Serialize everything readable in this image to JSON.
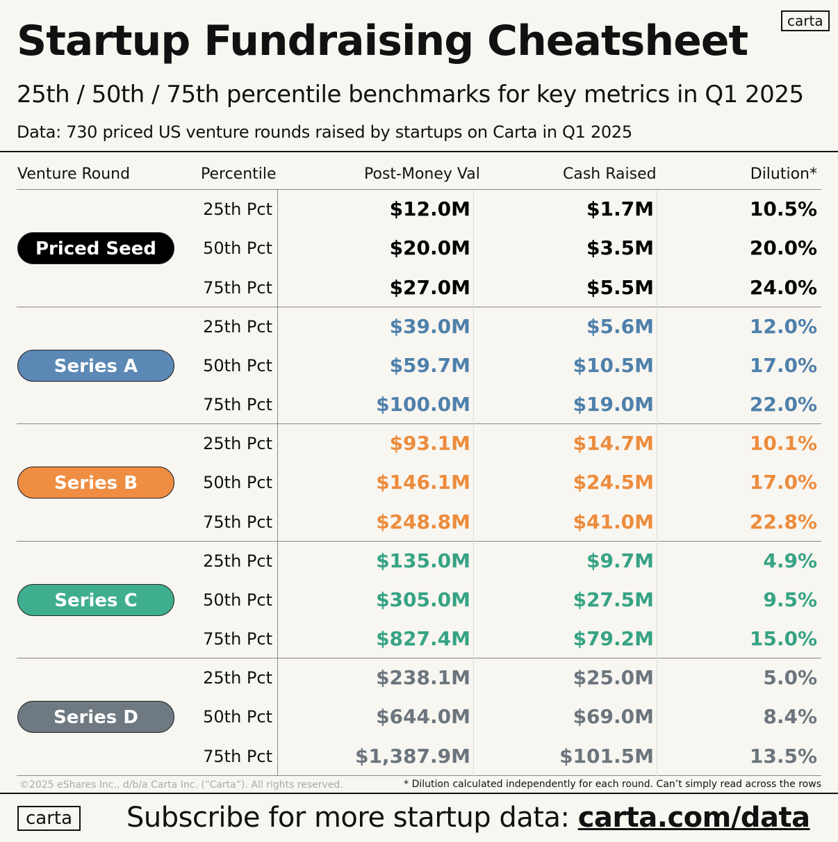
{
  "header": {
    "logo": "carta",
    "title": "Startup Fundraising Cheatsheet",
    "subtitle": "25th / 50th / 75th percentile benchmarks for key metrics in Q1 2025",
    "source": "Data: 730 priced US venture rounds raised by startups on Carta in Q1 2025"
  },
  "table": {
    "columns": [
      "Venture Round",
      "Percentile",
      "Post-Money Val",
      "Cash Raised",
      "Dilution*"
    ],
    "groups": [
      {
        "name": "Priced Seed",
        "rows": [
          [
            "25th Pct",
            "$12.0M",
            "$1.7M",
            "10.5%"
          ],
          [
            "50th Pct",
            "$20.0M",
            "$3.5M",
            "20.0%"
          ],
          [
            "75th Pct",
            "$27.0M",
            "$5.5M",
            "24.0%"
          ]
        ]
      },
      {
        "name": "Series A",
        "rows": [
          [
            "25th Pct",
            "$39.0M",
            "$5.6M",
            "12.0%"
          ],
          [
            "50th Pct",
            "$59.7M",
            "$10.5M",
            "17.0%"
          ],
          [
            "75th Pct",
            "$100.0M",
            "$19.0M",
            "22.0%"
          ]
        ]
      },
      {
        "name": "Series B",
        "rows": [
          [
            "25th Pct",
            "$93.1M",
            "$14.7M",
            "10.1%"
          ],
          [
            "50th Pct",
            "$146.1M",
            "$24.5M",
            "17.0%"
          ],
          [
            "75th Pct",
            "$248.8M",
            "$41.0M",
            "22.8%"
          ]
        ]
      },
      {
        "name": "Series C",
        "rows": [
          [
            "25th Pct",
            "$135.0M",
            "$9.7M",
            "4.9%"
          ],
          [
            "50th Pct",
            "$305.0M",
            "$27.5M",
            "9.5%"
          ],
          [
            "75th Pct",
            "$827.4M",
            "$79.2M",
            "15.0%"
          ]
        ]
      },
      {
        "name": "Series D",
        "rows": [
          [
            "25th Pct",
            "$238.1M",
            "$25.0M",
            "5.0%"
          ],
          [
            "50th Pct",
            "$644.0M",
            "$69.0M",
            "8.4%"
          ],
          [
            "75th Pct",
            "$1,387.9M",
            "$101.5M",
            "13.5%"
          ]
        ]
      }
    ]
  },
  "footer": {
    "copyright": "©2025 eShares Inc., d/b/a Carta Inc. (“Carta”). All rights reserved.",
    "note": "* Dilution calculated independently for each round. Can’t simply read across the rows",
    "logo": "carta",
    "cta": "Subscribe for more startup data:",
    "link": "carta.com/data"
  }
}
